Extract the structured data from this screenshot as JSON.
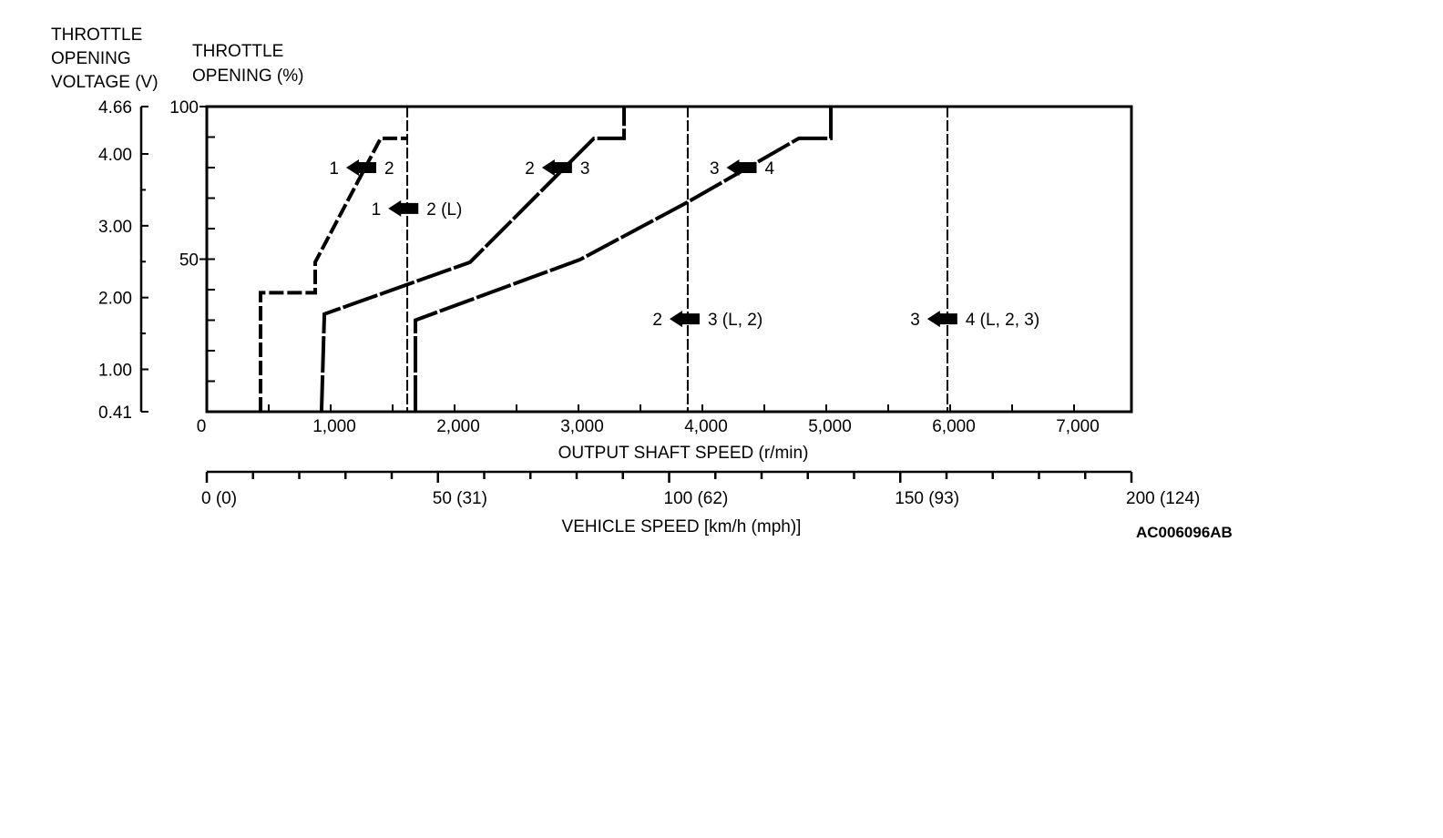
{
  "chart_data": {
    "type": "line",
    "title": "",
    "figure_id": "AC006096AB",
    "y_left_label": [
      "THROTTLE",
      "OPENING",
      "VOLTAGE (V)"
    ],
    "y_right_label": [
      "THROTTLE",
      "OPENING (%)"
    ],
    "xlabel": "OUTPUT SHAFT SPEED (r/min)",
    "x2label": "VEHICLE SPEED [km/h (mph)]",
    "xlim": [
      0,
      7460
    ],
    "ylim": [
      0,
      100
    ],
    "voltage_lim": [
      0.41,
      4.66
    ],
    "x_ticks": [
      {
        "value": 0,
        "label": "0"
      },
      {
        "value": 1000,
        "label": "1,000"
      },
      {
        "value": 2000,
        "label": "2,000"
      },
      {
        "value": 3000,
        "label": "3,000"
      },
      {
        "value": 4000,
        "label": "4,000"
      },
      {
        "value": 5000,
        "label": "5,000"
      },
      {
        "value": 6000,
        "label": "6,000"
      },
      {
        "value": 7000,
        "label": "7,000"
      }
    ],
    "pct_ticks": [
      {
        "value": 100,
        "label": "100"
      },
      {
        "value": 50,
        "label": "50"
      }
    ],
    "voltage_ticks": [
      {
        "value": 4.66,
        "label": "4.66"
      },
      {
        "value": 4.0,
        "label": "4.00"
      },
      {
        "value": 3.0,
        "label": "3.00"
      },
      {
        "value": 2.0,
        "label": "2.00"
      },
      {
        "value": 1.0,
        "label": "1.00"
      },
      {
        "value": 0.41,
        "label": "0.41"
      }
    ],
    "speed_ticks": [
      {
        "value": 0,
        "label": "0 (0)"
      },
      {
        "value": 50,
        "label": "50 (31)"
      },
      {
        "value": 100,
        "label": "100 (62)"
      },
      {
        "value": 150,
        "label": "150 (93)"
      },
      {
        "value": 200,
        "label": "200 (124)"
      }
    ],
    "series": [
      {
        "name": "1-2 downshift",
        "x": [
          434,
          434,
          875,
          875,
          1404,
          1618
        ],
        "y": [
          0,
          39,
          39,
          49,
          89.6,
          89.6
        ]
      },
      {
        "name": "2-3 downshift",
        "x": [
          926,
          949,
          2125,
          3125,
          3368,
          3368
        ],
        "y": [
          0,
          32,
          49,
          89.6,
          89.6,
          100
        ]
      },
      {
        "name": "3-4 downshift",
        "x": [
          1684,
          1684,
          3015,
          3882,
          4779,
          5037,
          5037
        ],
        "y": [
          0,
          30,
          49.9,
          68.7,
          89.6,
          89.6,
          100
        ]
      }
    ],
    "vertical_lines": [
      {
        "name": "1-2 (L)",
        "x": 1618
      },
      {
        "name": "2-3 (L, 2)",
        "x": 3882
      },
      {
        "name": "3-4 (L, 2, 3)",
        "x": 5978
      }
    ],
    "annotations": [
      {
        "from": "1",
        "to": "2",
        "x": 1250,
        "y": 80
      },
      {
        "from": "1",
        "to": "2 (L)",
        "x": 1590,
        "y": 66.6
      },
      {
        "from": "2",
        "to": "3",
        "x": 2830,
        "y": 80
      },
      {
        "from": "3",
        "to": "4",
        "x": 4320,
        "y": 80
      },
      {
        "from": "2",
        "to": "3 (L, 2)",
        "x": 3860,
        "y": 30.4
      },
      {
        "from": "3",
        "to": "4 (L, 2, 3)",
        "x": 5940,
        "y": 30.4
      }
    ]
  }
}
